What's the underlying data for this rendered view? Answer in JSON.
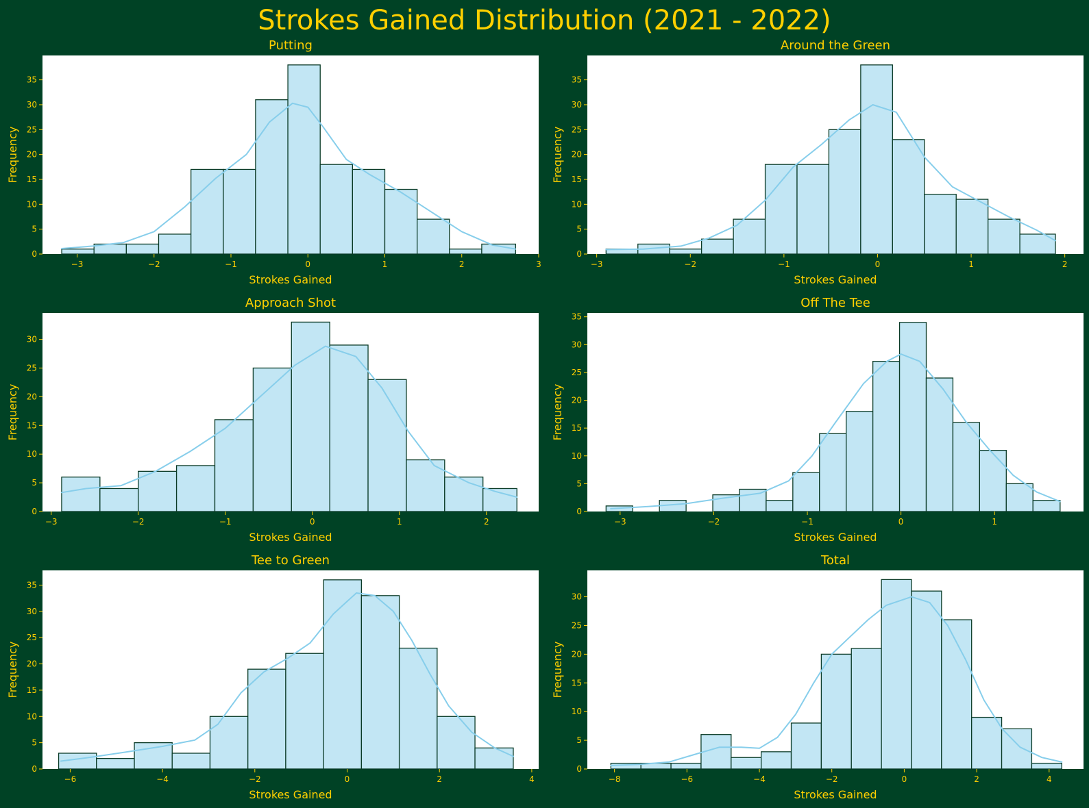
{
  "figure": {
    "title": "Strokes Gained Distribution (2021 - 2022)",
    "background": "#004225",
    "text_color": "#FFD000",
    "bar_fill": "#C2E6F4",
    "bar_edge": "#0A3A26",
    "kde_color": "#87CEEB"
  },
  "chart_data": [
    {
      "type": "bar",
      "title": "Putting",
      "xlabel": "Strokes Gained",
      "ylabel": "Frequency",
      "bin_edges": [
        -3.2,
        -2.78,
        -2.36,
        -1.94,
        -1.52,
        -1.1,
        -0.68,
        -0.26,
        0.16,
        0.58,
        1.0,
        1.42,
        1.84,
        2.26,
        2.7
      ],
      "values": [
        1,
        2,
        2,
        4,
        17,
        17,
        31,
        38,
        18,
        17,
        13,
        7,
        1,
        2
      ],
      "xlim": [
        -3.45,
        3.0
      ],
      "ylim": [
        0,
        39.9
      ],
      "xticks": [
        -3,
        -2,
        -1,
        0,
        1,
        2,
        3
      ],
      "yticks": [
        0,
        5,
        10,
        15,
        20,
        25,
        30,
        35
      ],
      "kde": [
        [
          -3.2,
          1.1
        ],
        [
          -2.8,
          1.6
        ],
        [
          -2.4,
          2.3
        ],
        [
          -2.0,
          4.5
        ],
        [
          -1.6,
          9.5
        ],
        [
          -1.2,
          15.2
        ],
        [
          -0.8,
          20.0
        ],
        [
          -0.5,
          26.5
        ],
        [
          -0.2,
          30.3
        ],
        [
          0.0,
          29.5
        ],
        [
          0.2,
          25.5
        ],
        [
          0.5,
          19.0
        ],
        [
          0.8,
          16.0
        ],
        [
          1.2,
          12.5
        ],
        [
          1.6,
          8.5
        ],
        [
          2.0,
          4.5
        ],
        [
          2.4,
          1.8
        ],
        [
          2.7,
          1.0
        ]
      ]
    },
    {
      "type": "bar",
      "title": "Around the Green",
      "xlabel": "Strokes Gained",
      "ylabel": "Frequency",
      "bin_edges": [
        -2.9,
        -2.56,
        -2.22,
        -1.88,
        -1.54,
        -1.2,
        -0.86,
        -0.52,
        -0.18,
        0.16,
        0.5,
        0.84,
        1.18,
        1.52,
        1.9
      ],
      "values": [
        1,
        2,
        1,
        3,
        7,
        18,
        18,
        25,
        38,
        23,
        12,
        11,
        7,
        4
      ],
      "xlim": [
        -3.1,
        2.2
      ],
      "ylim": [
        0,
        39.9
      ],
      "xticks": [
        -3,
        -2,
        -1,
        0,
        1,
        2
      ],
      "yticks": [
        0,
        5,
        10,
        15,
        20,
        25,
        30,
        35
      ],
      "kde": [
        [
          -2.9,
          0.9
        ],
        [
          -2.5,
          1.0
        ],
        [
          -2.1,
          1.6
        ],
        [
          -1.8,
          3.2
        ],
        [
          -1.5,
          5.8
        ],
        [
          -1.2,
          10.8
        ],
        [
          -0.9,
          17.5
        ],
        [
          -0.6,
          22.0
        ],
        [
          -0.3,
          27.0
        ],
        [
          -0.05,
          30.0
        ],
        [
          0.2,
          28.5
        ],
        [
          0.5,
          19.5
        ],
        [
          0.8,
          13.5
        ],
        [
          1.1,
          10.5
        ],
        [
          1.4,
          7.5
        ],
        [
          1.7,
          4.8
        ],
        [
          1.9,
          2.7
        ]
      ]
    },
    {
      "type": "bar",
      "title": "Approach Shot",
      "xlabel": "Strokes Gained",
      "ylabel": "Frequency",
      "bin_edges": [
        -2.88,
        -2.44,
        -2.0,
        -1.56,
        -1.12,
        -0.68,
        -0.24,
        0.2,
        0.64,
        1.08,
        1.52,
        1.96,
        2.35
      ],
      "values": [
        6,
        4,
        7,
        8,
        16,
        25,
        33,
        29,
        23,
        9,
        6,
        4
      ],
      "xlim": [
        -3.1,
        2.6
      ],
      "ylim": [
        0,
        34.6
      ],
      "xticks": [
        -3,
        -2,
        -1,
        0,
        1,
        2
      ],
      "yticks": [
        0,
        5,
        10,
        15,
        20,
        25,
        30
      ],
      "kde": [
        [
          -2.88,
          3.3
        ],
        [
          -2.6,
          4.0
        ],
        [
          -2.2,
          4.5
        ],
        [
          -1.8,
          7.0
        ],
        [
          -1.4,
          10.5
        ],
        [
          -1.0,
          14.5
        ],
        [
          -0.6,
          20.0
        ],
        [
          -0.2,
          25.5
        ],
        [
          0.15,
          28.8
        ],
        [
          0.5,
          27.0
        ],
        [
          0.8,
          21.5
        ],
        [
          1.1,
          14.0
        ],
        [
          1.4,
          8.0
        ],
        [
          1.8,
          5.0
        ],
        [
          2.1,
          3.5
        ],
        [
          2.35,
          2.5
        ]
      ]
    },
    {
      "type": "bar",
      "title": "Off The Tee",
      "xlabel": "Strokes Gained",
      "ylabel": "Frequency",
      "bin_edges": [
        -3.15,
        -2.865,
        -2.58,
        -2.295,
        -2.01,
        -1.725,
        -1.44,
        -1.155,
        -0.87,
        -0.585,
        -0.3,
        -0.015,
        0.27,
        0.555,
        0.84,
        1.125,
        1.41,
        1.7
      ],
      "values": [
        1,
        0,
        2,
        0,
        3,
        4,
        2,
        7,
        14,
        18,
        27,
        34,
        24,
        16,
        11,
        5,
        2
      ],
      "xlim": [
        -3.35,
        1.95
      ],
      "ylim": [
        0,
        35.7
      ],
      "xticks": [
        -3,
        -2,
        -1,
        0,
        1
      ],
      "yticks": [
        0,
        5,
        10,
        15,
        20,
        25,
        30,
        35
      ],
      "kde": [
        [
          -3.1,
          0.5
        ],
        [
          -2.7,
          0.9
        ],
        [
          -2.3,
          1.4
        ],
        [
          -1.9,
          2.4
        ],
        [
          -1.5,
          3.3
        ],
        [
          -1.2,
          5.5
        ],
        [
          -0.95,
          10.0
        ],
        [
          -0.7,
          16.0
        ],
        [
          -0.4,
          23.0
        ],
        [
          -0.15,
          27.0
        ],
        [
          0.0,
          28.3
        ],
        [
          0.2,
          27.0
        ],
        [
          0.45,
          22.0
        ],
        [
          0.7,
          16.0
        ],
        [
          0.95,
          11.0
        ],
        [
          1.2,
          6.5
        ],
        [
          1.45,
          3.5
        ],
        [
          1.7,
          1.8
        ]
      ]
    },
    {
      "type": "bar",
      "title": "Tee to Green",
      "xlabel": "Strokes Gained",
      "ylabel": "Frequency",
      "bin_edges": [
        -6.25,
        -5.43,
        -4.61,
        -3.79,
        -2.97,
        -2.15,
        -1.33,
        -0.51,
        0.31,
        1.13,
        1.95,
        2.77,
        3.6
      ],
      "values": [
        3,
        2,
        5,
        3,
        10,
        19,
        22,
        36,
        33,
        23,
        10,
        4
      ],
      "xlim": [
        -6.6,
        4.15
      ],
      "ylim": [
        0,
        37.8
      ],
      "xticks": [
        -6,
        -4,
        -2,
        0,
        2,
        4
      ],
      "yticks": [
        0,
        5,
        10,
        15,
        20,
        25,
        30,
        35
      ],
      "kde": [
        [
          -6.2,
          1.5
        ],
        [
          -5.5,
          2.3
        ],
        [
          -4.8,
          3.2
        ],
        [
          -4.0,
          4.3
        ],
        [
          -3.3,
          5.5
        ],
        [
          -2.8,
          8.5
        ],
        [
          -2.3,
          14.5
        ],
        [
          -1.8,
          18.5
        ],
        [
          -1.3,
          21.0
        ],
        [
          -0.8,
          24.0
        ],
        [
          -0.3,
          29.5
        ],
        [
          0.2,
          33.5
        ],
        [
          0.6,
          33.0
        ],
        [
          1.0,
          30.0
        ],
        [
          1.4,
          24.5
        ],
        [
          1.8,
          18.0
        ],
        [
          2.2,
          12.0
        ],
        [
          2.7,
          7.0
        ],
        [
          3.2,
          4.0
        ],
        [
          3.6,
          2.4
        ]
      ]
    },
    {
      "type": "bar",
      "title": "Total",
      "xlabel": "Strokes Gained",
      "ylabel": "Frequency",
      "bin_edges": [
        -8.1,
        -7.27,
        -6.44,
        -5.61,
        -4.78,
        -3.95,
        -3.12,
        -2.29,
        -1.46,
        -0.63,
        0.2,
        1.03,
        1.86,
        2.69,
        3.52,
        4.35
      ],
      "values": [
        1,
        1,
        1,
        6,
        2,
        3,
        8,
        20,
        21,
        33,
        31,
        26,
        9,
        7,
        1
      ],
      "xlim": [
        -8.75,
        4.95
      ],
      "ylim": [
        0,
        34.6
      ],
      "xticks": [
        -8,
        -6,
        -4,
        -2,
        0,
        2,
        4
      ],
      "yticks": [
        0,
        5,
        10,
        15,
        20,
        25,
        30
      ],
      "kde": [
        [
          -8.1,
          0.6
        ],
        [
          -7.3,
          0.8
        ],
        [
          -6.5,
          1.2
        ],
        [
          -5.8,
          2.5
        ],
        [
          -5.1,
          3.8
        ],
        [
          -4.5,
          3.8
        ],
        [
          -4.0,
          3.6
        ],
        [
          -3.5,
          5.5
        ],
        [
          -3.0,
          9.5
        ],
        [
          -2.5,
          15.0
        ],
        [
          -2.0,
          20.0
        ],
        [
          -1.5,
          23.0
        ],
        [
          -1.0,
          26.0
        ],
        [
          -0.5,
          28.5
        ],
        [
          0.2,
          30.0
        ],
        [
          0.7,
          29.0
        ],
        [
          1.2,
          25.0
        ],
        [
          1.7,
          19.0
        ],
        [
          2.2,
          12.0
        ],
        [
          2.7,
          7.0
        ],
        [
          3.2,
          3.8
        ],
        [
          3.8,
          2.0
        ],
        [
          4.35,
          1.2
        ]
      ]
    }
  ]
}
